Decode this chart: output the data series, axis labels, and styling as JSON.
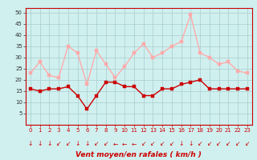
{
  "x": [
    0,
    1,
    2,
    3,
    4,
    5,
    6,
    7,
    8,
    9,
    10,
    11,
    12,
    13,
    14,
    15,
    16,
    17,
    18,
    19,
    20,
    21,
    22,
    23
  ],
  "wind_avg": [
    16,
    15,
    16,
    16,
    17,
    13,
    7,
    13,
    19,
    19,
    17,
    17,
    13,
    13,
    16,
    16,
    18,
    19,
    20,
    16,
    16,
    16,
    16,
    16
  ],
  "wind_gust": [
    23,
    28,
    22,
    21,
    35,
    32,
    18,
    33,
    27,
    21,
    26,
    32,
    36,
    30,
    32,
    35,
    37,
    49,
    32,
    30,
    27,
    28,
    24,
    23
  ],
  "avg_color": "#cc0000",
  "gust_color": "#ffaaaa",
  "bg_color": "#d0f0f0",
  "grid_color": "#aacccc",
  "xlabel": "Vent moyen/en rafales ( km/h )",
  "xlabel_color": "#cc0000",
  "ylim": [
    0,
    52
  ],
  "yticks": [
    5,
    10,
    15,
    20,
    25,
    30,
    35,
    40,
    45,
    50
  ],
  "xticks": [
    0,
    1,
    2,
    3,
    4,
    5,
    6,
    7,
    8,
    9,
    10,
    11,
    12,
    13,
    14,
    15,
    16,
    17,
    18,
    19,
    20,
    21,
    22,
    23
  ],
  "marker_size": 2.5,
  "line_width": 1.0,
  "arrow_chars": [
    "↓",
    "↓",
    "↓",
    "↙",
    "↙",
    "↓",
    "↓",
    "↙",
    "↙",
    "←",
    "←",
    "←",
    "↙",
    "↙",
    "↙",
    "↙",
    "↓",
    "↓",
    "↙",
    "↙",
    "↙",
    "↙",
    "↙",
    "↙"
  ]
}
